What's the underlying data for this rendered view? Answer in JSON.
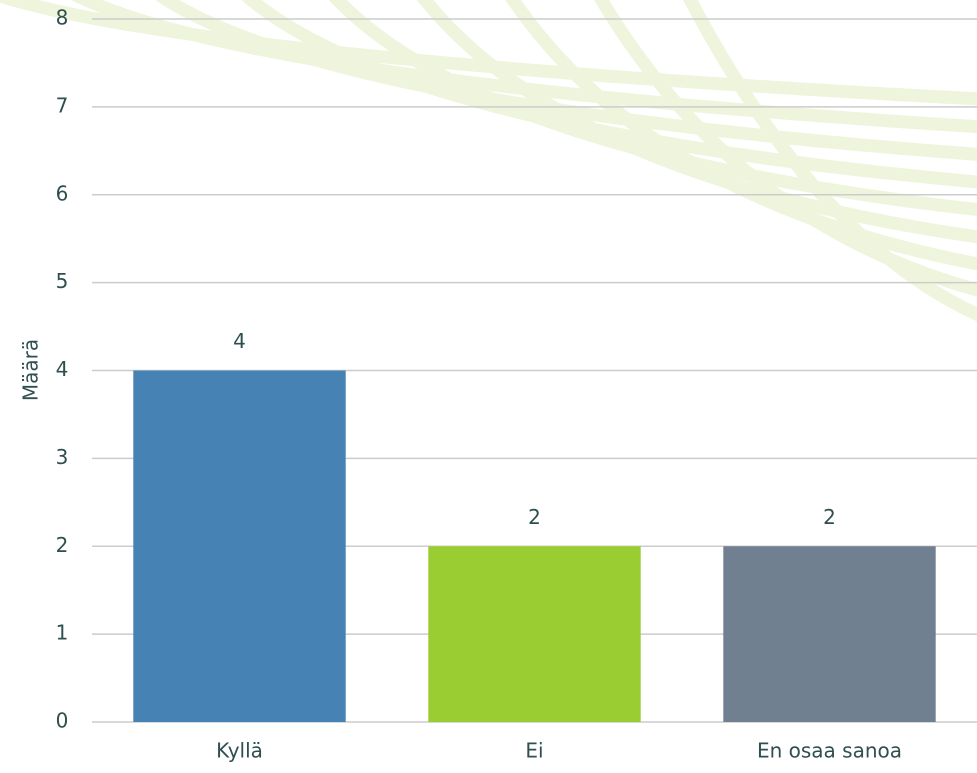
{
  "chart_data": {
    "type": "bar",
    "y_label": "Määrä",
    "categories": [
      "Kyllä",
      "Ei",
      "En osaa sanoa"
    ],
    "values": [
      4,
      2,
      2
    ],
    "colors": [
      "#4682b4",
      "#9acd32",
      "#708090"
    ],
    "ylim": [
      0,
      8
    ],
    "yticks": [
      0,
      1,
      2,
      3,
      4,
      5,
      6,
      7,
      8
    ],
    "grid": true
  }
}
